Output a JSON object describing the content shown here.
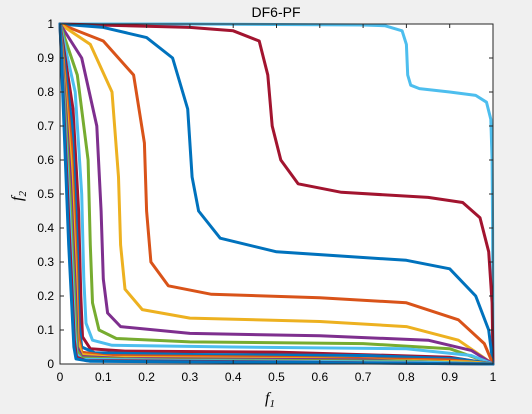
{
  "chart_data": {
    "type": "line",
    "title": "DF6-PF",
    "xlabel": "f",
    "xlabel_sub": "1",
    "ylabel": "f",
    "ylabel_sub": "2",
    "xlim": [
      0,
      1
    ],
    "ylim": [
      0,
      1
    ],
    "xticks": [
      "0",
      "0.1",
      "0.2",
      "0.3",
      "0.4",
      "0.5",
      "0.6",
      "0.7",
      "0.8",
      "0.9",
      "1"
    ],
    "yticks": [
      "0",
      "0.1",
      "0.2",
      "0.3",
      "0.4",
      "0.5",
      "0.6",
      "0.7",
      "0.8",
      "0.9",
      "1"
    ],
    "grid": false,
    "series": [
      {
        "color": "#4DBEEE",
        "values": [
          [
            0,
            1
          ],
          [
            0.3,
            1
          ],
          [
            0.6,
            0.998
          ],
          [
            0.7,
            0.997
          ],
          [
            0.75,
            0.995
          ],
          [
            0.79,
            0.98
          ],
          [
            0.8,
            0.94
          ],
          [
            0.803,
            0.85
          ],
          [
            0.81,
            0.82
          ],
          [
            0.83,
            0.81
          ],
          [
            0.9,
            0.8
          ],
          [
            0.96,
            0.79
          ],
          [
            0.985,
            0.77
          ],
          [
            0.995,
            0.72
          ],
          [
            0.998,
            0.6
          ],
          [
            0.999,
            0.4
          ],
          [
            1,
            0
          ]
        ]
      },
      {
        "color": "#A2142F",
        "values": [
          [
            0,
            1
          ],
          [
            0.3,
            0.99
          ],
          [
            0.4,
            0.98
          ],
          [
            0.46,
            0.95
          ],
          [
            0.48,
            0.85
          ],
          [
            0.49,
            0.7
          ],
          [
            0.51,
            0.6
          ],
          [
            0.55,
            0.53
          ],
          [
            0.65,
            0.505
          ],
          [
            0.85,
            0.49
          ],
          [
            0.93,
            0.475
          ],
          [
            0.97,
            0.43
          ],
          [
            0.99,
            0.33
          ],
          [
            0.998,
            0.18
          ],
          [
            1,
            0
          ]
        ]
      },
      {
        "color": "#0072BD",
        "values": [
          [
            0,
            1
          ],
          [
            0.1,
            0.99
          ],
          [
            0.2,
            0.96
          ],
          [
            0.26,
            0.9
          ],
          [
            0.295,
            0.75
          ],
          [
            0.305,
            0.55
          ],
          [
            0.32,
            0.45
          ],
          [
            0.37,
            0.37
          ],
          [
            0.5,
            0.33
          ],
          [
            0.8,
            0.305
          ],
          [
            0.9,
            0.28
          ],
          [
            0.96,
            0.2
          ],
          [
            0.99,
            0.1
          ],
          [
            1,
            0
          ]
        ]
      },
      {
        "color": "#D95319",
        "values": [
          [
            0,
            1
          ],
          [
            0.1,
            0.95
          ],
          [
            0.17,
            0.85
          ],
          [
            0.195,
            0.65
          ],
          [
            0.2,
            0.45
          ],
          [
            0.21,
            0.3
          ],
          [
            0.25,
            0.23
          ],
          [
            0.35,
            0.205
          ],
          [
            0.6,
            0.195
          ],
          [
            0.8,
            0.18
          ],
          [
            0.92,
            0.13
          ],
          [
            0.98,
            0.06
          ],
          [
            1,
            0
          ]
        ]
      },
      {
        "color": "#EDB120",
        "values": [
          [
            0,
            1
          ],
          [
            0.07,
            0.94
          ],
          [
            0.12,
            0.8
          ],
          [
            0.135,
            0.55
          ],
          [
            0.14,
            0.35
          ],
          [
            0.15,
            0.22
          ],
          [
            0.19,
            0.16
          ],
          [
            0.3,
            0.135
          ],
          [
            0.6,
            0.125
          ],
          [
            0.8,
            0.11
          ],
          [
            0.92,
            0.07
          ],
          [
            1,
            0
          ]
        ]
      },
      {
        "color": "#7E2F8E",
        "values": [
          [
            0,
            1
          ],
          [
            0.05,
            0.9
          ],
          [
            0.085,
            0.7
          ],
          [
            0.095,
            0.45
          ],
          [
            0.1,
            0.25
          ],
          [
            0.11,
            0.15
          ],
          [
            0.14,
            0.11
          ],
          [
            0.3,
            0.09
          ],
          [
            0.6,
            0.083
          ],
          [
            0.85,
            0.07
          ],
          [
            0.95,
            0.04
          ],
          [
            1,
            0
          ]
        ]
      },
      {
        "color": "#77AC30",
        "values": [
          [
            0,
            1
          ],
          [
            0.04,
            0.85
          ],
          [
            0.065,
            0.6
          ],
          [
            0.07,
            0.35
          ],
          [
            0.075,
            0.18
          ],
          [
            0.09,
            0.1
          ],
          [
            0.13,
            0.075
          ],
          [
            0.3,
            0.065
          ],
          [
            0.7,
            0.06
          ],
          [
            0.9,
            0.045
          ],
          [
            1,
            0
          ]
        ]
      },
      {
        "color": "#4DBEEE",
        "values": [
          [
            0,
            1
          ],
          [
            0.035,
            0.8
          ],
          [
            0.05,
            0.5
          ],
          [
            0.055,
            0.25
          ],
          [
            0.06,
            0.12
          ],
          [
            0.075,
            0.07
          ],
          [
            0.12,
            0.055
          ],
          [
            0.4,
            0.05
          ],
          [
            0.8,
            0.045
          ],
          [
            0.95,
            0.025
          ],
          [
            1,
            0
          ]
        ]
      },
      {
        "color": "#A2142F",
        "values": [
          [
            0,
            1
          ],
          [
            0.03,
            0.75
          ],
          [
            0.043,
            0.45
          ],
          [
            0.048,
            0.2
          ],
          [
            0.052,
            0.08
          ],
          [
            0.07,
            0.045
          ],
          [
            0.15,
            0.038
          ],
          [
            0.5,
            0.035
          ],
          [
            0.9,
            0.02
          ],
          [
            1,
            0
          ]
        ]
      },
      {
        "color": "#0072BD",
        "values": [
          [
            0,
            1
          ],
          [
            0.028,
            0.7
          ],
          [
            0.04,
            0.35
          ],
          [
            0.044,
            0.12
          ],
          [
            0.05,
            0.05
          ],
          [
            0.08,
            0.033
          ],
          [
            0.3,
            0.028
          ],
          [
            0.7,
            0.025
          ],
          [
            0.92,
            0.015
          ],
          [
            1,
            0
          ]
        ]
      },
      {
        "color": "#D95319",
        "values": [
          [
            0,
            1
          ],
          [
            0.026,
            0.65
          ],
          [
            0.038,
            0.3
          ],
          [
            0.042,
            0.09
          ],
          [
            0.05,
            0.035
          ],
          [
            0.1,
            0.025
          ],
          [
            0.5,
            0.02
          ],
          [
            0.9,
            0.012
          ],
          [
            1,
            0
          ]
        ]
      },
      {
        "color": "#EDB120",
        "values": [
          [
            0,
            1
          ],
          [
            0.025,
            0.6
          ],
          [
            0.037,
            0.25
          ],
          [
            0.041,
            0.07
          ],
          [
            0.05,
            0.028
          ],
          [
            0.12,
            0.02
          ],
          [
            0.6,
            0.015
          ],
          [
            0.95,
            0.006
          ],
          [
            1,
            0
          ]
        ]
      },
      {
        "color": "#7E2F8E",
        "values": [
          [
            0,
            1
          ],
          [
            0.024,
            0.55
          ],
          [
            0.036,
            0.2
          ],
          [
            0.04,
            0.05
          ],
          [
            0.05,
            0.022
          ],
          [
            0.15,
            0.016
          ],
          [
            0.7,
            0.012
          ],
          [
            1,
            0
          ]
        ]
      },
      {
        "color": "#77AC30",
        "values": [
          [
            0,
            1
          ],
          [
            0.023,
            0.5
          ],
          [
            0.035,
            0.15
          ],
          [
            0.039,
            0.04
          ],
          [
            0.05,
            0.018
          ],
          [
            0.2,
            0.013
          ],
          [
            0.8,
            0.008
          ],
          [
            1,
            0
          ]
        ]
      },
      {
        "color": "#4DBEEE",
        "values": [
          [
            0,
            1
          ],
          [
            0.022,
            0.45
          ],
          [
            0.034,
            0.1
          ],
          [
            0.038,
            0.03
          ],
          [
            0.05,
            0.014
          ],
          [
            0.3,
            0.01
          ],
          [
            0.85,
            0.005
          ],
          [
            1,
            0
          ]
        ]
      },
      {
        "color": "#A2142F",
        "values": [
          [
            0,
            1
          ],
          [
            0.021,
            0.4
          ],
          [
            0.033,
            0.07
          ],
          [
            0.038,
            0.02
          ],
          [
            0.06,
            0.01
          ],
          [
            0.4,
            0.007
          ],
          [
            1,
            0
          ]
        ]
      },
      {
        "color": "#0072BD",
        "values": [
          [
            0,
            1
          ],
          [
            0.02,
            0.35
          ],
          [
            0.032,
            0.05
          ],
          [
            0.037,
            0.015
          ],
          [
            0.07,
            0.008
          ],
          [
            0.5,
            0.005
          ],
          [
            1,
            0
          ]
        ]
      }
    ]
  }
}
